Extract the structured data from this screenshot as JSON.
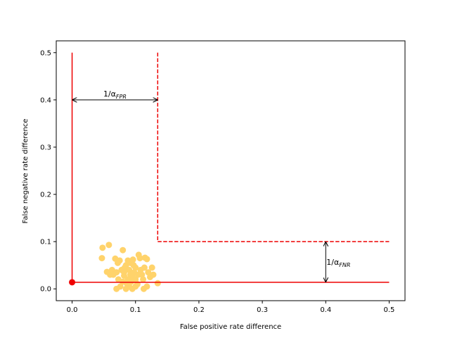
{
  "chart_data": {
    "type": "scatter",
    "xlabel": "False positive rate difference",
    "ylabel": "False negative rate difference",
    "xlim": [
      -0.025,
      0.525
    ],
    "ylim": [
      -0.025,
      0.525
    ],
    "xticks": [
      0.0,
      0.1,
      0.2,
      0.3,
      0.4,
      0.5
    ],
    "yticks": [
      0.0,
      0.1,
      0.2,
      0.3,
      0.4,
      0.5
    ],
    "xtick_labels": [
      "0.0",
      "0.1",
      "0.2",
      "0.3",
      "0.4",
      "0.5"
    ],
    "ytick_labels": [
      "0.0",
      "0.1",
      "0.2",
      "0.3",
      "0.4",
      "0.5"
    ],
    "grid": false,
    "colors": {
      "scatter": "#ffd36b",
      "lines": "#ee0000",
      "annotation": "#000000"
    },
    "scatter_points": [
      [
        0.048,
        0.087
      ],
      [
        0.058,
        0.093
      ],
      [
        0.047,
        0.065
      ],
      [
        0.055,
        0.036
      ],
      [
        0.06,
        0.03
      ],
      [
        0.063,
        0.04
      ],
      [
        0.068,
        0.064
      ],
      [
        0.072,
        0.055
      ],
      [
        0.075,
        0.06
      ],
      [
        0.07,
        0.035
      ],
      [
        0.073,
        0.02
      ],
      [
        0.07,
        0.0
      ],
      [
        0.076,
        0.005
      ],
      [
        0.08,
        0.015
      ],
      [
        0.082,
        0.028
      ],
      [
        0.083,
        0.045
      ],
      [
        0.085,
        0.05
      ],
      [
        0.08,
        0.082
      ],
      [
        0.088,
        0.06
      ],
      [
        0.09,
        0.04
      ],
      [
        0.092,
        0.03
      ],
      [
        0.093,
        0.015
      ],
      [
        0.095,
        0.025
      ],
      [
        0.09,
        0.005
      ],
      [
        0.097,
        0.05
      ],
      [
        0.1,
        0.045
      ],
      [
        0.098,
        0.035
      ],
      [
        0.1,
        0.02
      ],
      [
        0.103,
        0.01
      ],
      [
        0.105,
        0.072
      ],
      [
        0.107,
        0.065
      ],
      [
        0.108,
        0.04
      ],
      [
        0.11,
        0.03
      ],
      [
        0.112,
        0.02
      ],
      [
        0.114,
        0.045
      ],
      [
        0.115,
        0.066
      ],
      [
        0.118,
        0.063
      ],
      [
        0.12,
        0.035
      ],
      [
        0.123,
        0.025
      ],
      [
        0.126,
        0.045
      ],
      [
        0.128,
        0.03
      ],
      [
        0.135,
        0.012
      ],
      [
        0.118,
        0.005
      ],
      [
        0.113,
        0.0
      ],
      [
        0.095,
        0.0
      ],
      [
        0.085,
        0.0
      ],
      [
        0.088,
        0.02
      ],
      [
        0.078,
        0.04
      ],
      [
        0.065,
        0.03
      ],
      [
        0.1,
        0.005
      ],
      [
        0.082,
        0.035
      ],
      [
        0.092,
        0.055
      ],
      [
        0.086,
        0.012
      ],
      [
        0.104,
        0.03
      ],
      [
        0.096,
        0.062
      ]
    ],
    "point": {
      "x": 0.0,
      "y": 0.014
    },
    "solid_lines": [
      {
        "x": [
          0.0,
          0.0
        ],
        "y": [
          0.014,
          0.5
        ]
      },
      {
        "x": [
          0.0,
          0.5
        ],
        "y": [
          0.014,
          0.014
        ]
      }
    ],
    "dashed_lines": [
      {
        "x": [
          0.135,
          0.135
        ],
        "y": [
          0.5,
          0.1
        ]
      },
      {
        "x": [
          0.135,
          0.5
        ],
        "y": [
          0.1,
          0.1
        ]
      }
    ],
    "annotations": [
      {
        "label": "1/α_FPR",
        "base": "1/α",
        "sub": "FPR",
        "from": [
          0.0,
          0.4
        ],
        "to": [
          0.135,
          0.4
        ],
        "orientation": "horizontal"
      },
      {
        "label": "1/α_FNR",
        "base": "1/α",
        "sub": "FNR",
        "from": [
          0.4,
          0.1
        ],
        "to": [
          0.4,
          0.014
        ],
        "orientation": "vertical"
      }
    ]
  }
}
